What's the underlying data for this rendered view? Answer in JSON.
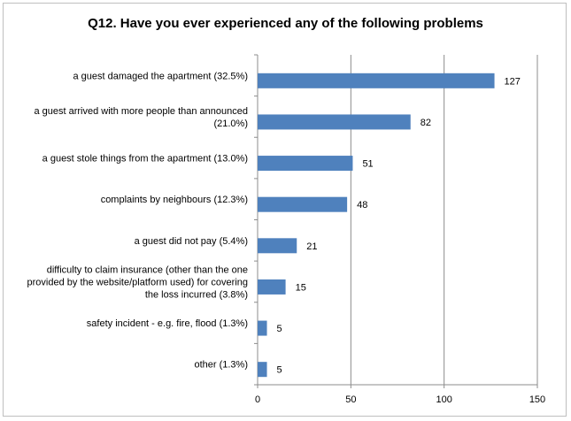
{
  "chart_data": {
    "type": "bar",
    "orientation": "horizontal",
    "title": "Q12. Have you ever experienced any of the following problems",
    "categories": [
      [
        "a guest damaged the apartment (32.5%)"
      ],
      [
        "a guest arrived with more people than announced",
        "(21.0%)"
      ],
      [
        "a guest stole things from the apartment (13.0%)"
      ],
      [
        "complaints by neighbours (12.3%)"
      ],
      [
        "a guest did not pay (5.4%)"
      ],
      [
        "difficulty to claim insurance (other than the one",
        "provided by the website/platform used) for covering",
        "the loss incurred (3.8%)"
      ],
      [
        "safety incident - e.g. fire, flood (1.3%)"
      ],
      [
        "other (1.3%)"
      ]
    ],
    "values": [
      127,
      82,
      51,
      48,
      21,
      15,
      5,
      5
    ],
    "xlim": [
      0,
      150
    ],
    "xticks": [
      0,
      50,
      100,
      150
    ],
    "grid": true,
    "bar_color": "#4f81bd"
  }
}
